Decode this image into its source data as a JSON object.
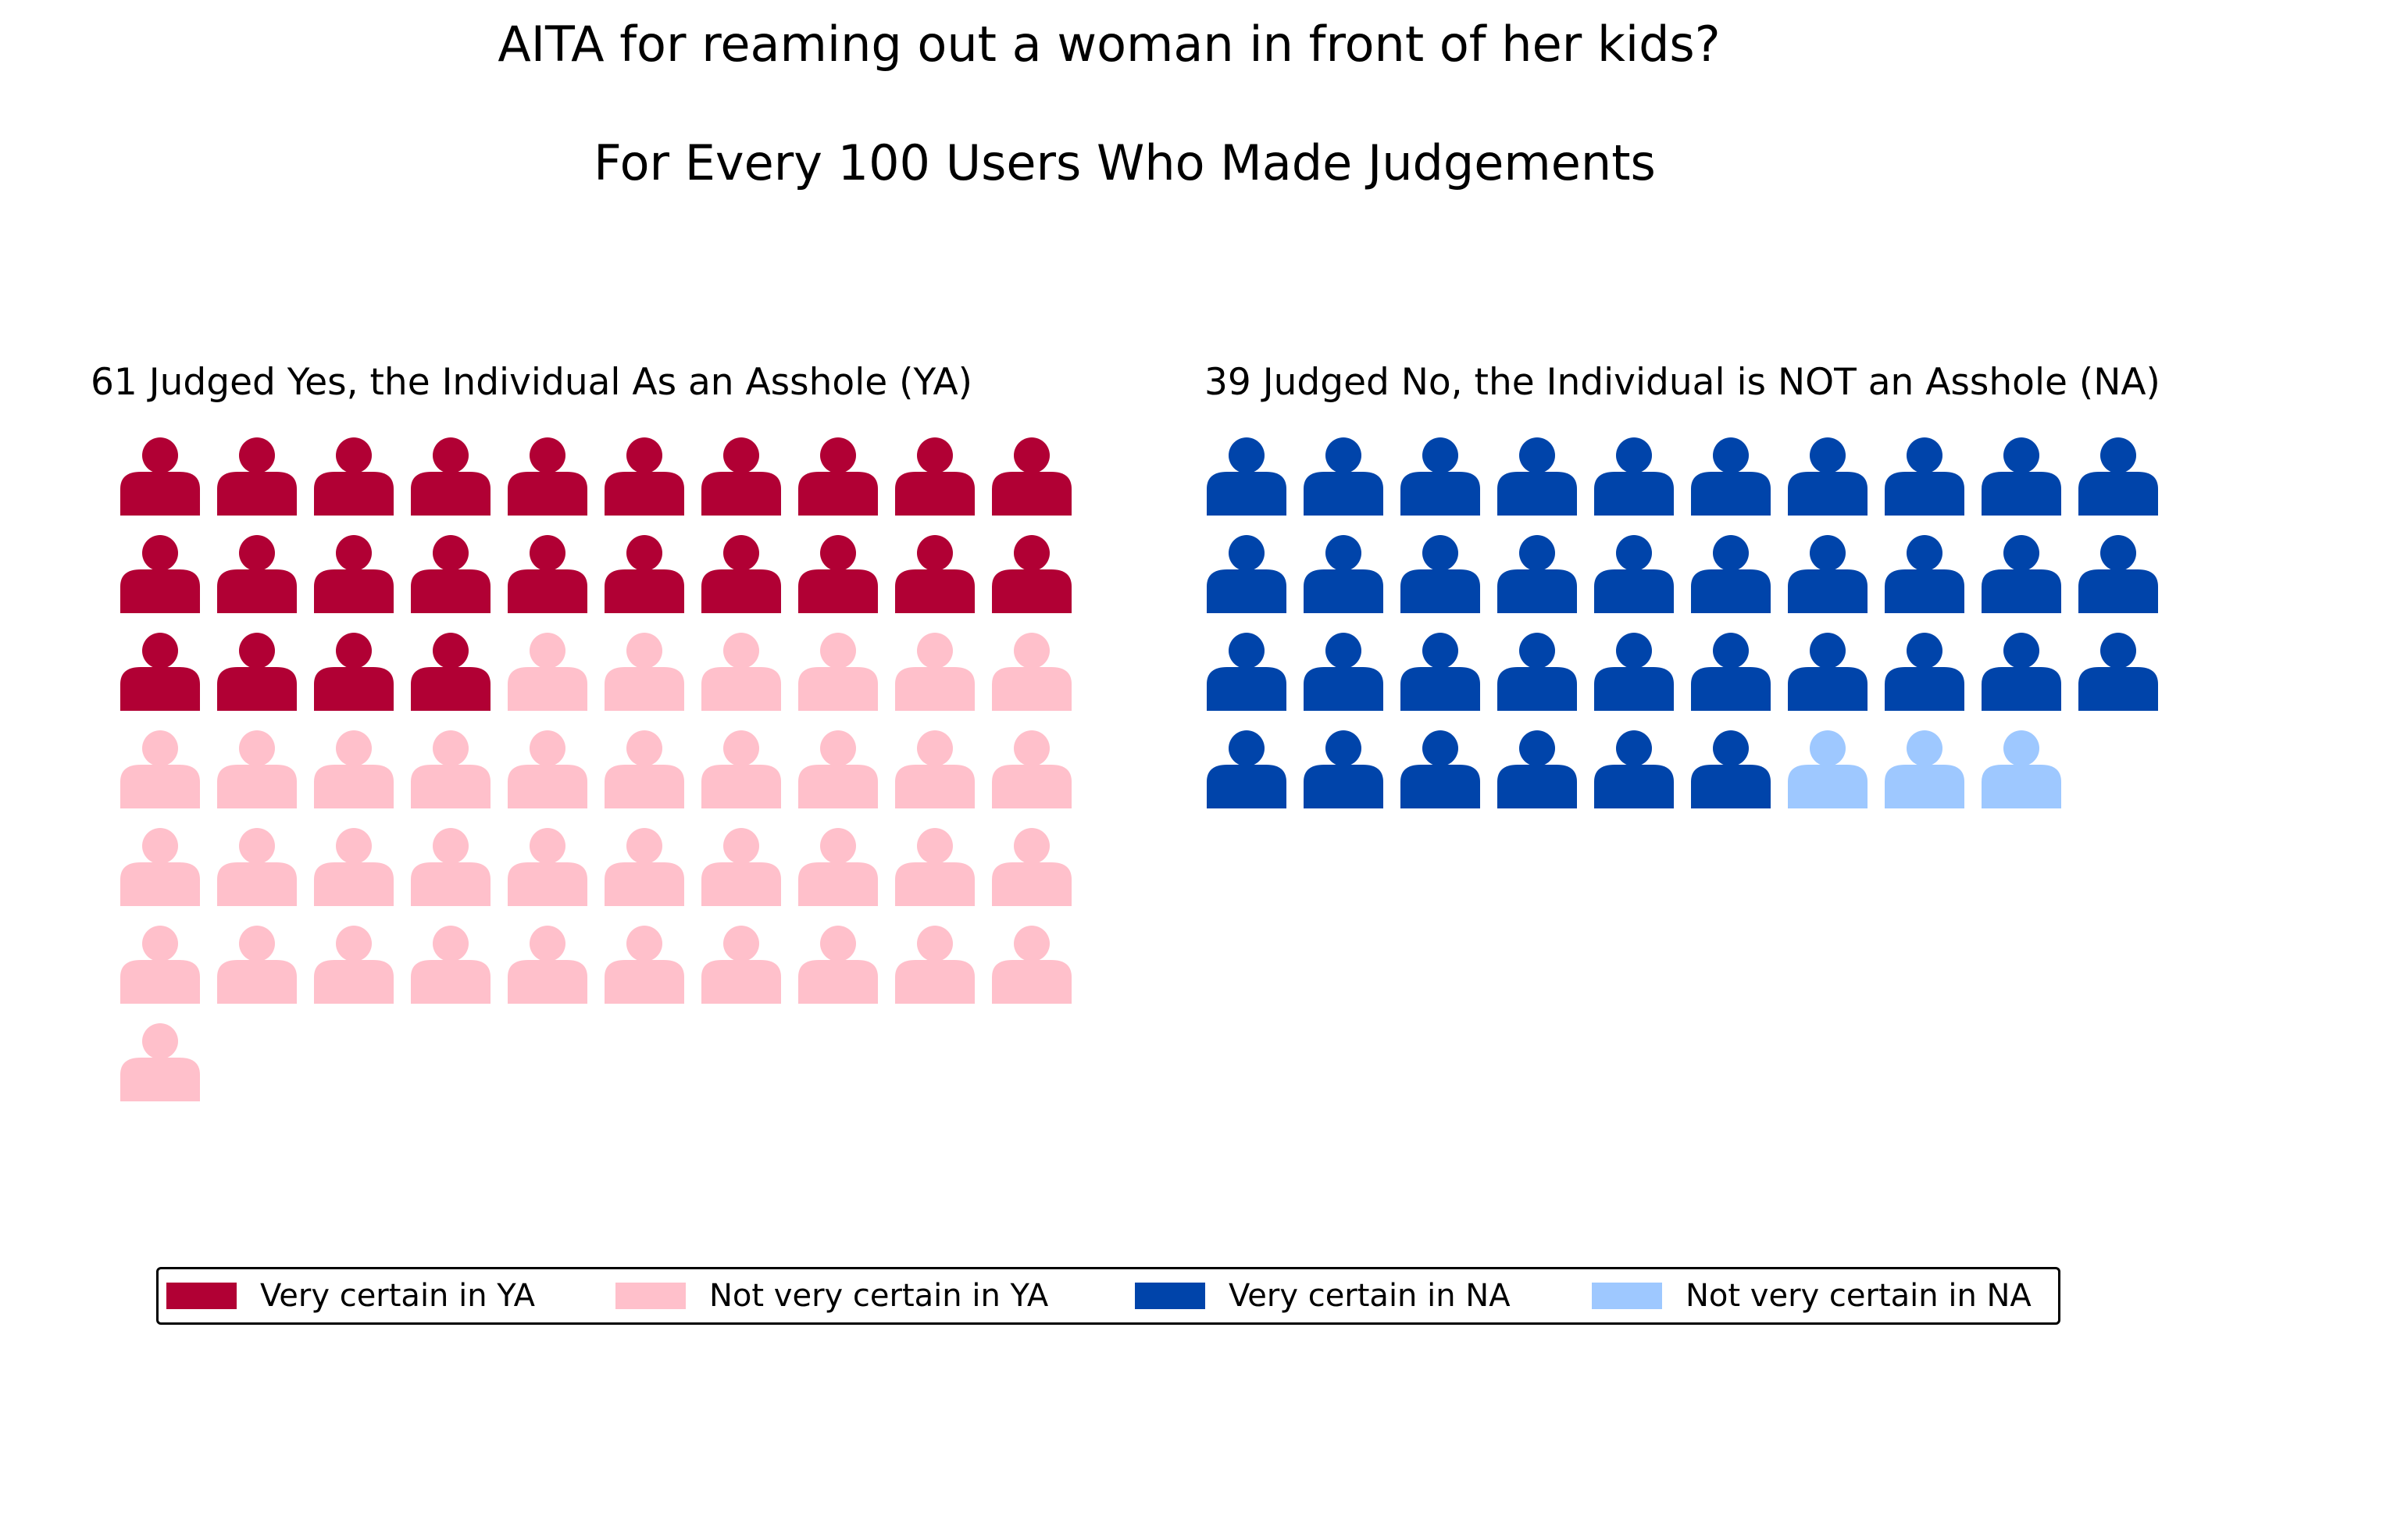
{
  "chart_data": {
    "type": "pictograph",
    "title": "AITA for reaming out a woman in front of her kids?",
    "subtitle": "For Every 100 Users Who Made Judgements",
    "icon": "person-icon",
    "panels": [
      {
        "title": "61 Judged Yes, the Individual As an Asshole (YA)",
        "total": 61,
        "columns": 10,
        "segments": [
          {
            "name": "Very certain in YA",
            "count": 24,
            "color": "#b10034"
          },
          {
            "name": "Not very certain in YA",
            "count": 37,
            "color": "#ffc0cb"
          }
        ]
      },
      {
        "title": "39 Judged No, the Individual is NOT an Asshole (NA)",
        "total": 39,
        "columns": 10,
        "segments": [
          {
            "name": "Very certain in NA",
            "count": 36,
            "color": "#0044aa"
          },
          {
            "name": "Not very certain in NA",
            "count": 3,
            "color": "#9ec8ff"
          }
        ]
      }
    ],
    "legend": [
      {
        "label": "Very certain in YA",
        "color": "#b10034"
      },
      {
        "label": "Not very certain in YA",
        "color": "#ffc0cb"
      },
      {
        "label": "Very certain in NA",
        "color": "#0044aa"
      },
      {
        "label": "Not very certain in NA",
        "color": "#9ec8ff"
      }
    ]
  }
}
